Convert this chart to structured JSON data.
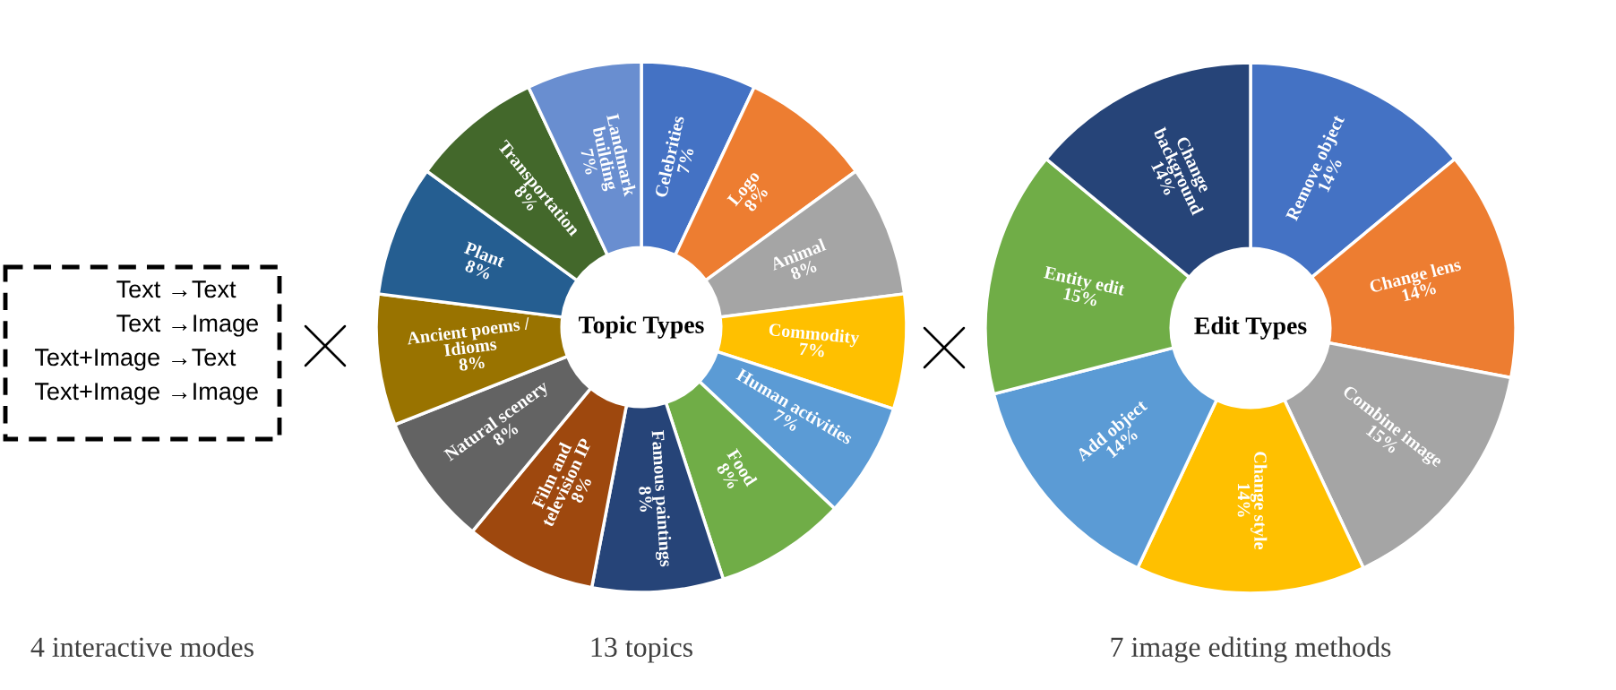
{
  "chart_data": [
    {
      "type": "other",
      "title": "4 interactive modes",
      "annotations": [
        "Text →Text",
        "Text →Image",
        "Text+Image →Text",
        "Text+Image →Image"
      ]
    },
    {
      "type": "donut",
      "title": "Topic Types",
      "categories": [
        "Celebrities",
        "Logo",
        "Animal",
        "Commodity",
        "Human activities",
        "Food",
        "Famous paintings",
        "Film and\ntelevision IP",
        "Natural scenery",
        "Ancient poems /\nIdioms",
        "Plant",
        "Transportation",
        "Landmark\nbuilding"
      ],
      "values": [
        7,
        8,
        8,
        7,
        7,
        8,
        8,
        8,
        8,
        8,
        8,
        8,
        7
      ],
      "value_labels": [
        "7%",
        "8%",
        "8%",
        "7%",
        "7%",
        "8%",
        "8%",
        "8%",
        "8%",
        "8%",
        "8%",
        "8%",
        "7%"
      ],
      "colors": [
        "#4472c4",
        "#ed7d31",
        "#a5a5a5",
        "#ffc000",
        "#5b9bd5",
        "#70ad47",
        "#264478",
        "#9e480e",
        "#636363",
        "#997300",
        "#255e91",
        "#43682b",
        "#698ed0"
      ],
      "annotations": [
        "13 topics"
      ]
    },
    {
      "type": "donut",
      "title": "Edit Types",
      "categories": [
        "Remove object",
        "Change lens",
        "Combine image",
        "Change style",
        "Add object",
        "Entity edit",
        "Change\nbackground"
      ],
      "values": [
        14,
        14,
        15,
        14,
        14,
        15,
        14
      ],
      "value_labels": [
        "14%",
        "14%",
        "15%",
        "14%",
        "14%",
        "15%",
        "14%"
      ],
      "colors": [
        "#4472c4",
        "#ed7d31",
        "#a5a5a5",
        "#ffc000",
        "#5b9bd5",
        "#70ad47",
        "#264478"
      ],
      "annotations": [
        "7 image editing methods"
      ]
    }
  ]
}
